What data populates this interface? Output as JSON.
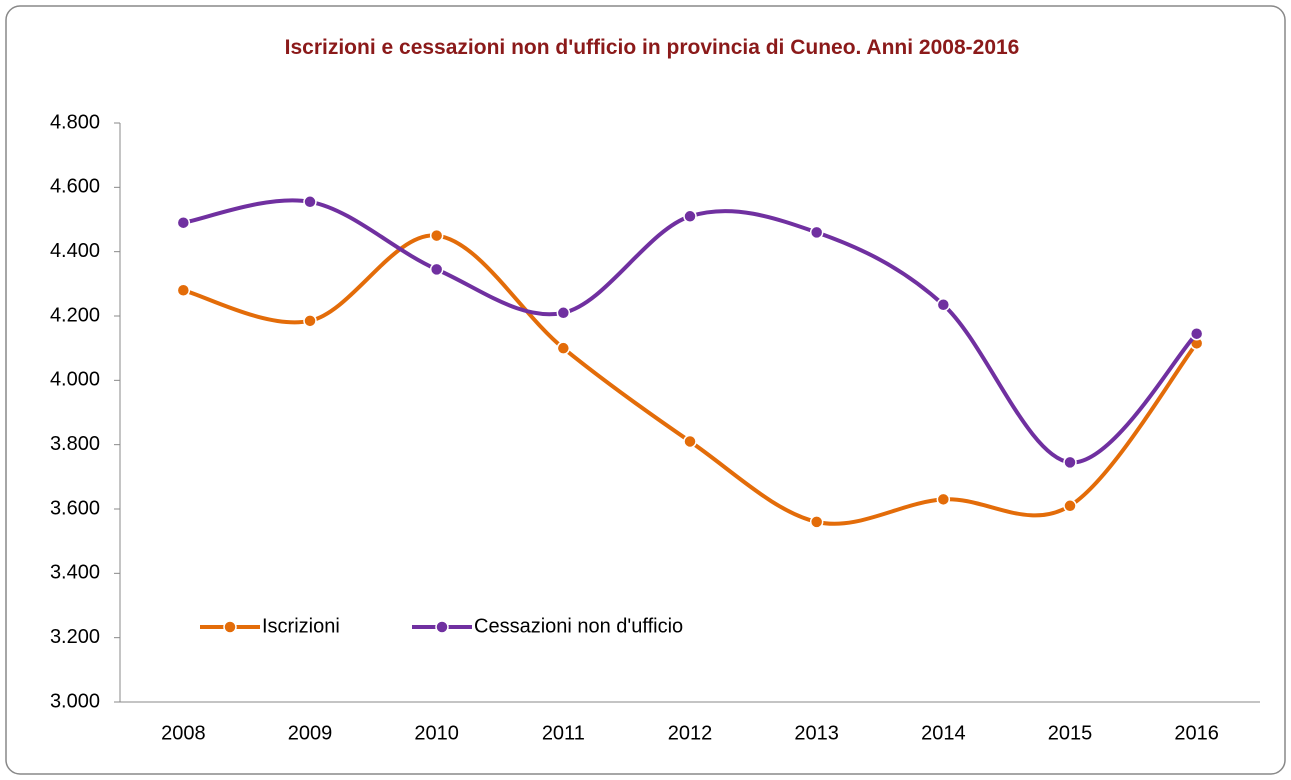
{
  "chart_data": {
    "type": "line",
    "title": "Iscrizioni e cessazioni non d'ufficio in provincia di Cuneo. Anni 2008-2016",
    "categories": [
      "2008",
      "2009",
      "2010",
      "2011",
      "2012",
      "2013",
      "2014",
      "2015",
      "2016"
    ],
    "series": [
      {
        "name": "Iscrizioni",
        "color": "#e36c09",
        "values": [
          4280,
          4185,
          4450,
          4100,
          3810,
          3560,
          3630,
          3610,
          4115
        ]
      },
      {
        "name": "Cessazioni non d'ufficio",
        "color": "#7030a0",
        "values": [
          4490,
          4555,
          4345,
          4210,
          4510,
          4460,
          4235,
          3745,
          4145
        ]
      }
    ],
    "ylim": [
      3000,
      4800
    ],
    "yticks": [
      {
        "value": 3000,
        "label": "3.000"
      },
      {
        "value": 3200,
        "label": "3.200"
      },
      {
        "value": 3400,
        "label": "3.400"
      },
      {
        "value": 3600,
        "label": "3.600"
      },
      {
        "value": 3800,
        "label": "3.800"
      },
      {
        "value": 4000,
        "label": "4.000"
      },
      {
        "value": 4200,
        "label": "4.200"
      },
      {
        "value": 4400,
        "label": "4.400"
      },
      {
        "value": 4600,
        "label": "4.600"
      },
      {
        "value": 4800,
        "label": "4.800"
      }
    ],
    "grid": false,
    "smooth": true,
    "legend": "bottom-left"
  }
}
